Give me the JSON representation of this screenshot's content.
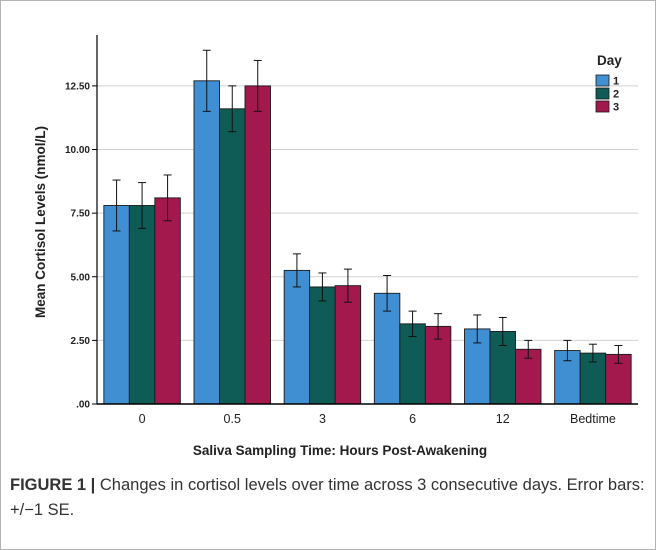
{
  "chart_data": {
    "type": "bar",
    "categories": [
      "0",
      "0.5",
      "3",
      "6",
      "12",
      "Bedtime"
    ],
    "series": [
      {
        "name": "1",
        "values": [
          7.8,
          12.7,
          5.25,
          4.35,
          2.95,
          2.1
        ],
        "error": [
          1.0,
          1.2,
          0.65,
          0.7,
          0.55,
          0.4
        ]
      },
      {
        "name": "2",
        "values": [
          7.8,
          11.6,
          4.6,
          3.15,
          2.85,
          2.0
        ],
        "error": [
          0.9,
          0.9,
          0.55,
          0.5,
          0.55,
          0.35
        ]
      },
      {
        "name": "3",
        "values": [
          8.1,
          12.5,
          4.65,
          3.05,
          2.15,
          1.95
        ],
        "error": [
          0.9,
          1.0,
          0.65,
          0.5,
          0.35,
          0.35
        ]
      }
    ],
    "ylabel": "Mean Cortisol Levels (nmol/L)",
    "xlabel": "Saliva Sampling Time: Hours Post-Awakening",
    "legend_title": "Day",
    "yticks": [
      0,
      2.5,
      5.0,
      7.5,
      10.0,
      12.5
    ],
    "ytick_labels": [
      ".00",
      "2.50",
      "5.00",
      "7.50",
      "10.00",
      "12.50"
    ],
    "ylim": [
      0,
      14.5
    ],
    "grid": true,
    "legend_position": "top-right",
    "colors": [
      "#3f8fd2",
      "#0e5c55",
      "#a3194e"
    ]
  },
  "caption": {
    "label": "FIGURE 1 |",
    "text": " Changes in cortisol levels over time across 3 consecutive days. Error bars: +/−1 SE."
  }
}
